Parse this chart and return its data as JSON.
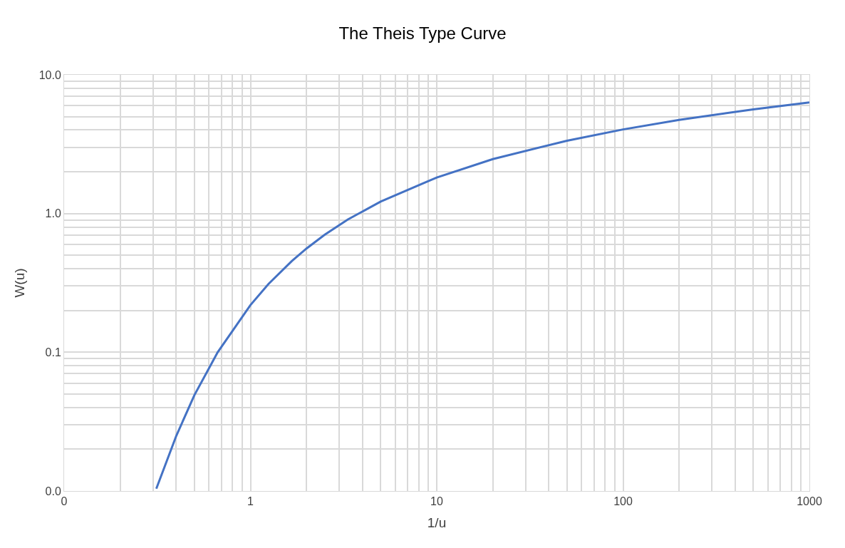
{
  "chart_data": {
    "type": "line",
    "title": "The Theis Type Curve",
    "xlabel": "1/u",
    "ylabel": "W(u)",
    "log": "xy",
    "grid": true,
    "marker": "none",
    "line_style": "solid",
    "xlim": [
      0.1,
      1000
    ],
    "ylim": [
      0.01,
      10
    ],
    "xticks": [
      {
        "value": 0.1,
        "label": "0"
      },
      1,
      10,
      100,
      1000
    ],
    "yticks": [
      {
        "value": 0.01,
        "label": "0.0"
      },
      {
        "value": 0.1,
        "label": "0.1"
      },
      {
        "value": 1,
        "label": "1.0"
      },
      {
        "value": 10,
        "label": "10.0"
      }
    ],
    "x": [
      0.3125,
      0.4,
      0.5,
      0.667,
      1,
      1.25,
      1.667,
      2,
      2.5,
      3.333,
      5,
      10,
      20,
      50,
      100,
      200,
      500,
      1000
    ],
    "series": [
      {
        "color": "#4472c4",
        "values": [
          0.0104,
          0.025,
          0.049,
          0.1,
          0.219,
          0.311,
          0.454,
          0.56,
          0.702,
          0.906,
          1.22,
          1.82,
          2.47,
          3.35,
          4.04,
          4.73,
          5.64,
          6.33
        ]
      }
    ]
  }
}
